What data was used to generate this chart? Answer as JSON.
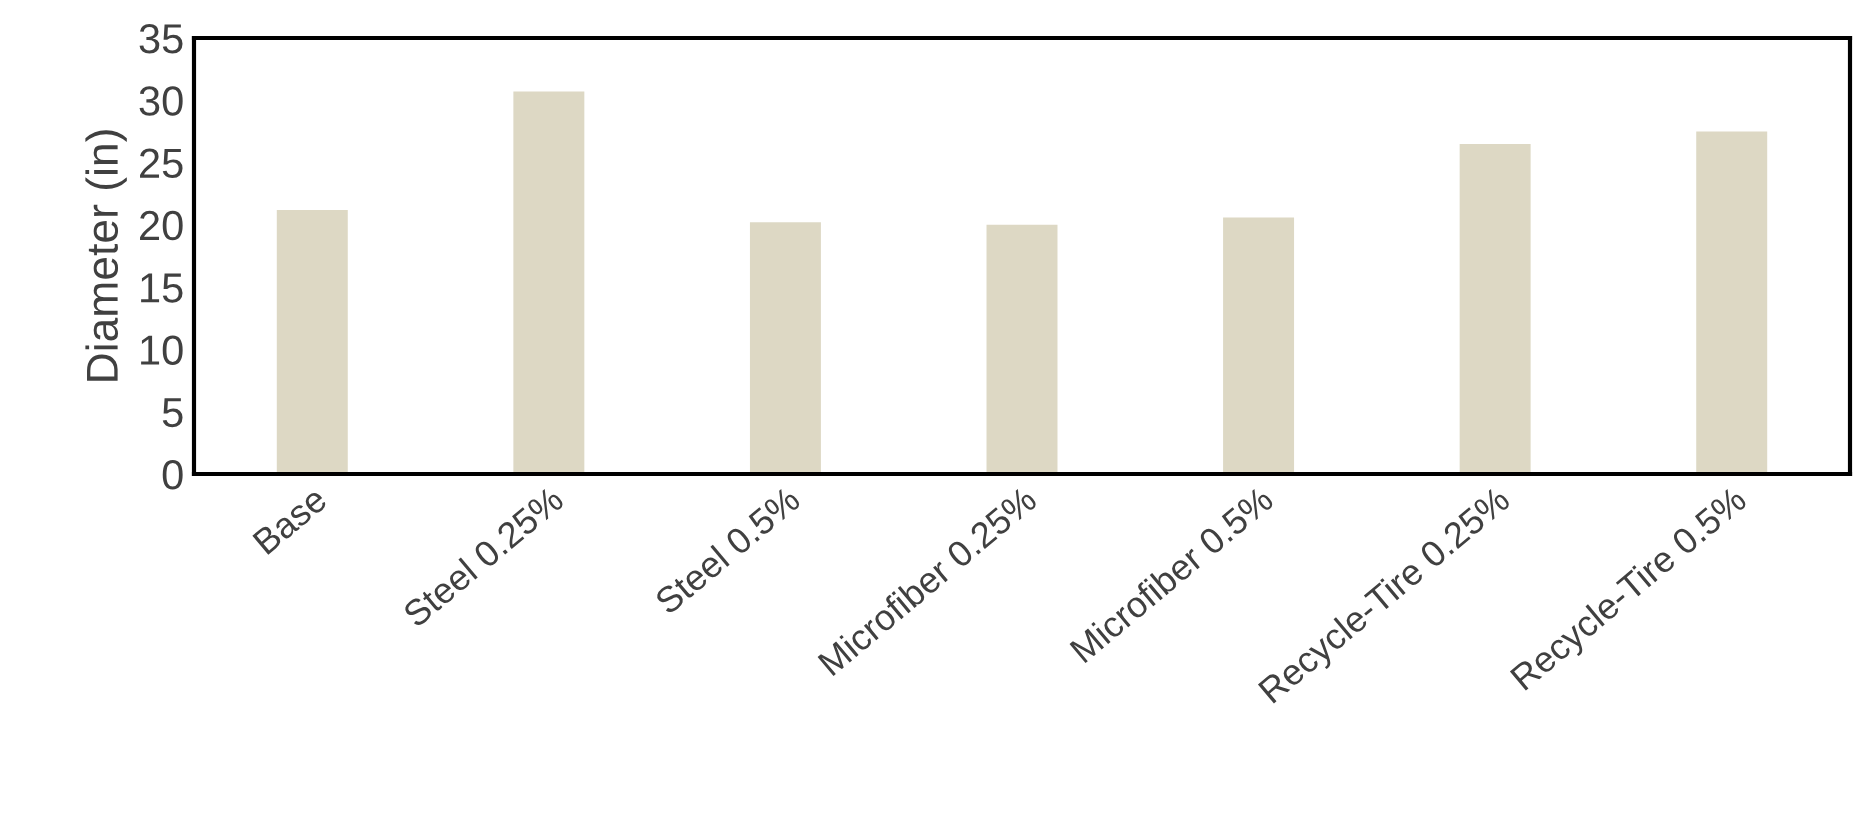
{
  "chart_data": {
    "type": "bar",
    "ylabel": "Diameter (in)",
    "categories": [
      "Base",
      "Steel 0.25%",
      "Steel 0.5%",
      "Microfiber 0.25%",
      "Microfiber 0.5%",
      "Recycle-Tire 0.25%",
      "Recycle-Tire 0.5%"
    ],
    "values": [
      21.2,
      30.7,
      20.2,
      20.0,
      20.6,
      26.5,
      27.5
    ],
    "color": "#ddd8c4",
    "ylim": [
      0,
      35
    ],
    "yticks": [
      0,
      5,
      10,
      15,
      20,
      25,
      30,
      35
    ],
    "grid": false
  }
}
